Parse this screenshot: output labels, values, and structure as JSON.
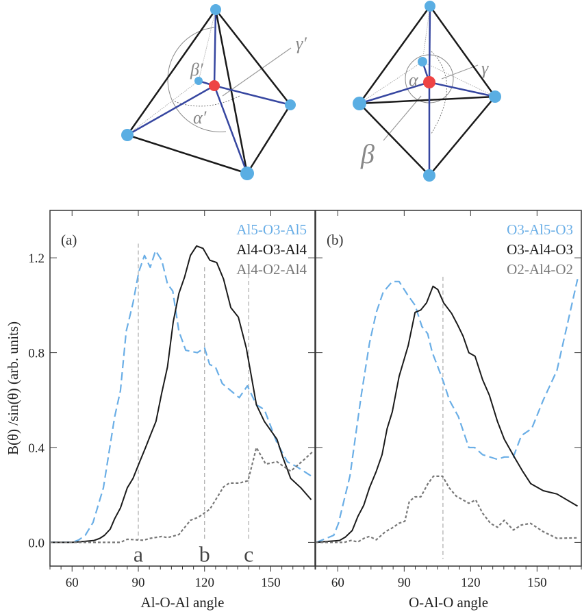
{
  "diagrams": {
    "tetrahedron": {
      "labels": [
        "β′",
        "α′",
        "γ′"
      ]
    },
    "bipyramid": {
      "labels": [
        "α",
        "γ",
        "β"
      ]
    }
  },
  "colors": {
    "blue_series": "#6aaee6",
    "black_series": "#1a1a1a",
    "gray_series": "#777777",
    "oxygen_atom": "#5aaee3",
    "aluminum_atom": "#ee4444",
    "bond": "#3646a0"
  },
  "chart_data": [
    {
      "type": "line",
      "panel_label": "(a)",
      "xlabel": "Al-O-Al angle",
      "ylabel": "B(θ) /sin(θ) (arb. units)",
      "xlim": [
        50,
        170
      ],
      "ylim": [
        -0.1,
        1.4
      ],
      "xticks": [
        "60",
        "90",
        "120",
        "150"
      ],
      "xtick_values": [
        60,
        90,
        120,
        150
      ],
      "yticks": [
        "0.0",
        "0.4",
        "0.8",
        "1.2"
      ],
      "ytick_values": [
        0,
        0.4,
        0.8,
        1.2
      ],
      "legend_position": "top-right",
      "reference_lines": [
        {
          "x": 90,
          "label": "a"
        },
        {
          "x": 120,
          "label": "b"
        },
        {
          "x": 140,
          "label": "c"
        }
      ],
      "series": [
        {
          "name": "Al5-O3-Al5",
          "color": "#6aaee6",
          "style": "dashed",
          "x": [
            50,
            60,
            63,
            66,
            69.5,
            74.2,
            79.3,
            81.9,
            84.5,
            87.6,
            90.2,
            92.8,
            95.4,
            97.8,
            100.6,
            103.2,
            105.6,
            108.4,
            111.5,
            116.7,
            120,
            122.3,
            124.9,
            128,
            135.7,
            139.4,
            143.5,
            147.1,
            152.8,
            157.5,
            161.6,
            168.3
          ],
          "y": [
            0,
            0,
            0.01,
            0.03,
            0.084,
            0.23,
            0.53,
            0.64,
            0.89,
            1.01,
            1.14,
            1.21,
            1.16,
            1.23,
            1.19,
            1.09,
            1.06,
            0.89,
            0.81,
            0.8,
            0.82,
            0.75,
            0.74,
            0.67,
            0.61,
            0.66,
            0.58,
            0.56,
            0.42,
            0.34,
            0.32,
            0.28
          ]
        },
        {
          "name": "Al4-O3-Al4",
          "color": "#1a1a1a",
          "style": "solid",
          "x": [
            50,
            60,
            66.4,
            70,
            72.6,
            74.7,
            77.3,
            79.3,
            81.9,
            85,
            87.6,
            90.2,
            93.3,
            95.4,
            98,
            100.6,
            103.2,
            105.8,
            108.4,
            111,
            113.6,
            116.4,
            119.3,
            122.4,
            125.5,
            128.6,
            131.9,
            135.3,
            138.9,
            141,
            143.5,
            147.1,
            152.8,
            155.4,
            159,
            163.6,
            168.3
          ],
          "y": [
            0,
            0,
            0.005,
            0.008,
            0.017,
            0.03,
            0.056,
            0.1,
            0.145,
            0.23,
            0.27,
            0.33,
            0.4,
            0.45,
            0.51,
            0.63,
            0.74,
            0.93,
            1.05,
            1.12,
            1.21,
            1.25,
            1.24,
            1.19,
            1.18,
            1.11,
            0.99,
            0.95,
            0.82,
            0.71,
            0.58,
            0.51,
            0.435,
            0.36,
            0.27,
            0.23,
            0.18
          ]
        },
        {
          "name": "Al4-O2-Al4",
          "color": "#777777",
          "style": "dotted",
          "x": [
            50,
            60,
            81.9,
            85,
            92.3,
            95.4,
            100.6,
            103.2,
            108.4,
            113.6,
            117.2,
            122.4,
            128.6,
            131.2,
            135.7,
            139.7,
            143.5,
            147.7,
            152.8,
            159,
            165.2,
            169.3
          ],
          "y": [
            0,
            0,
            0,
            0.013,
            0.009,
            0.017,
            0.025,
            0.02,
            0.033,
            0.093,
            0.106,
            0.14,
            0.234,
            0.25,
            0.25,
            0.26,
            0.4,
            0.33,
            0.34,
            0.3,
            0.35,
            0.385
          ]
        }
      ]
    },
    {
      "type": "line",
      "panel_label": "(b)",
      "xlabel": "O-Al-O angle",
      "xlim": [
        50,
        170
      ],
      "ylim": [
        -0.1,
        1.4
      ],
      "xticks": [
        "60",
        "90",
        "120",
        "150"
      ],
      "xtick_values": [
        60,
        90,
        120,
        150
      ],
      "ytick_values": [
        0,
        0.4,
        0.8,
        1.2
      ],
      "legend_position": "top-right",
      "reference_lines": [
        {
          "x": 107.5,
          "label": ""
        }
      ],
      "series": [
        {
          "name": "O3-Al5-O3",
          "color": "#6aaee6",
          "style": "dashed",
          "x": [
            50.3,
            58.2,
            60.3,
            65.5,
            70.6,
            74.3,
            77.4,
            80.5,
            84.6,
            87.7,
            91.8,
            94.9,
            98,
            100.6,
            102.7,
            105.2,
            107.8,
            110.4,
            114.5,
            119.2,
            121.8,
            125.4,
            132.1,
            135.2,
            139.3,
            142.9,
            147.6,
            152.8,
            159,
            168.3
          ],
          "y": [
            0,
            0.03,
            0.08,
            0.28,
            0.62,
            0.84,
            0.97,
            1.055,
            1.1,
            1.1,
            1.04,
            1.0,
            0.91,
            0.88,
            0.8,
            0.74,
            0.675,
            0.6,
            0.53,
            0.4,
            0.4,
            0.37,
            0.35,
            0.36,
            0.36,
            0.45,
            0.48,
            0.6,
            0.725,
            1.11
          ]
        },
        {
          "name": "O3-Al4-O3",
          "color": "#1a1a1a",
          "style": "solid",
          "x": [
            50,
            60.8,
            63.4,
            66.5,
            69.1,
            71.7,
            74.3,
            77.4,
            80,
            82.3,
            84.6,
            87.7,
            91.8,
            94.9,
            97.5,
            100.1,
            103,
            105.2,
            107.8,
            111.4,
            114,
            116.6,
            119.2,
            122,
            125.4,
            128.5,
            132.1,
            135.2,
            139.9,
            143.5,
            147.1,
            152.8,
            159,
            168.3
          ],
          "y": [
            0,
            0.008,
            0.022,
            0.05,
            0.11,
            0.156,
            0.23,
            0.3,
            0.37,
            0.48,
            0.55,
            0.7,
            0.83,
            0.97,
            0.98,
            1.01,
            1.08,
            1.066,
            1.01,
            0.966,
            0.92,
            0.87,
            0.8,
            0.785,
            0.686,
            0.62,
            0.51,
            0.435,
            0.357,
            0.3,
            0.248,
            0.218,
            0.204,
            0.153
          ]
        },
        {
          "name": "O2-Al4-O2",
          "color": "#777777",
          "style": "dotted",
          "x": [
            50,
            62.9,
            66,
            69.1,
            72.2,
            74.3,
            77.4,
            81.5,
            84.6,
            87.7,
            90.3,
            92.3,
            94.9,
            97.5,
            100.6,
            103.2,
            107.3,
            110.4,
            113.5,
            119.2,
            122.3,
            125.4,
            129,
            132.1,
            135.2,
            139.3,
            142.9,
            147.1,
            152.8,
            159,
            168.3
          ],
          "y": [
            0,
            0,
            0.008,
            0.002,
            0.019,
            0.025,
            0.011,
            0.045,
            0.061,
            0.081,
            0.089,
            0.173,
            0.192,
            0.192,
            0.246,
            0.279,
            0.279,
            0.229,
            0.195,
            0.165,
            0.179,
            0.123,
            0.08,
            0.064,
            0.093,
            0.052,
            0.073,
            0.08,
            0.045,
            0.017,
            0.019
          ]
        }
      ]
    }
  ]
}
